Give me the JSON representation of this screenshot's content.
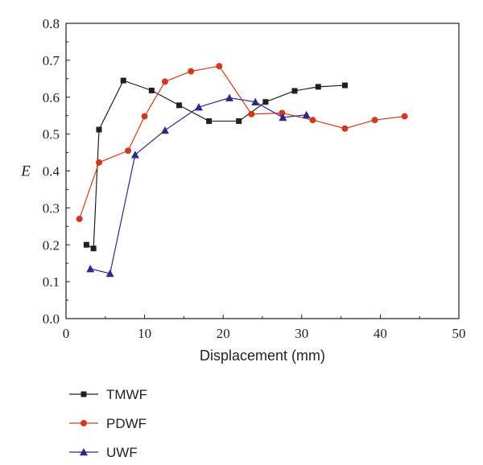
{
  "chart_data": {
    "type": "line",
    "xlabel": "Displacement (mm)",
    "ylabel": "E",
    "xlim": [
      0,
      50
    ],
    "ylim": [
      0.0,
      0.8
    ],
    "xticks": [
      0,
      10,
      20,
      30,
      40,
      50
    ],
    "xtick_labels": [
      "0",
      "10",
      "20",
      "30",
      "40",
      "50"
    ],
    "yticks": [
      0.0,
      0.1,
      0.2,
      0.3,
      0.4,
      0.5,
      0.6,
      0.7,
      0.8
    ],
    "ytick_labels": [
      "0.0",
      "0.1",
      "0.2",
      "0.3",
      "0.4",
      "0.5",
      "0.6",
      "0.7",
      "0.8"
    ],
    "grid": false,
    "legend_position": "bottom-left",
    "series": [
      {
        "name": "TMWF",
        "color": "#231f20",
        "marker": "square",
        "x": [
          2.6,
          3.5,
          4.2,
          7.3,
          10.9,
          14.4,
          18.2,
          22.0,
          25.4,
          29.1,
          32.1,
          35.5
        ],
        "y": [
          0.2,
          0.19,
          0.512,
          0.645,
          0.618,
          0.578,
          0.535,
          0.535,
          0.587,
          0.617,
          0.628,
          0.632
        ]
      },
      {
        "name": "PDWF",
        "color": "#cf3a1f",
        "marker": "circle",
        "x": [
          1.7,
          4.2,
          7.9,
          10.0,
          12.6,
          15.9,
          19.5,
          23.6,
          27.5,
          31.4,
          35.5,
          39.3,
          43.1
        ],
        "y": [
          0.27,
          0.423,
          0.455,
          0.548,
          0.642,
          0.67,
          0.684,
          0.554,
          0.557,
          0.538,
          0.515,
          0.538,
          0.548
        ]
      },
      {
        "name": "UWF",
        "color": "#2b2a86",
        "marker": "triangle",
        "x": [
          3.1,
          5.6,
          8.8,
          12.6,
          16.9,
          20.8,
          24.1,
          27.6,
          30.6
        ],
        "y": [
          0.135,
          0.122,
          0.444,
          0.51,
          0.573,
          0.598,
          0.587,
          0.545,
          0.552
        ]
      }
    ]
  }
}
